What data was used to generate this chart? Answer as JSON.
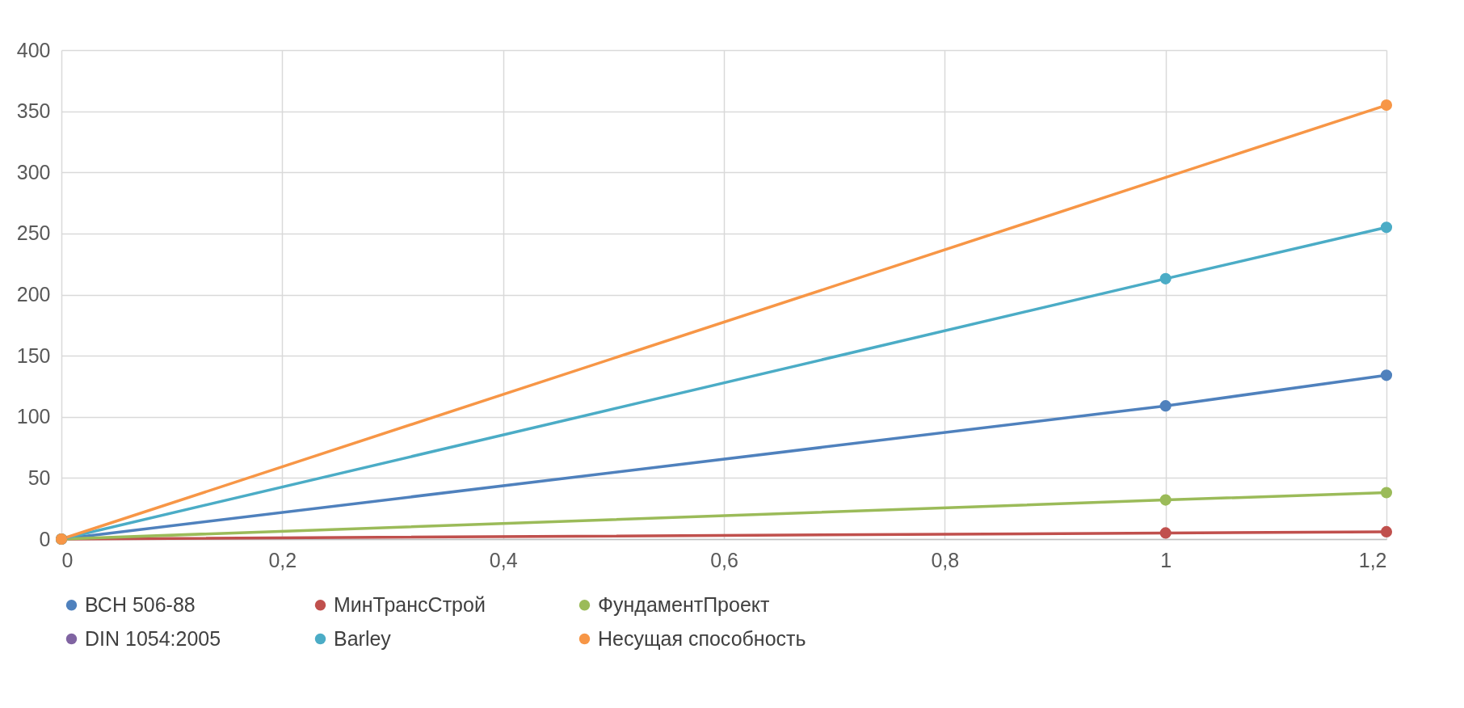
{
  "chart_data": {
    "type": "line",
    "x": [
      0,
      1,
      1.2
    ],
    "series": [
      {
        "name": "ВСН 506-88",
        "color": "#4f81bd",
        "values": [
          0,
          109,
          134
        ]
      },
      {
        "name": "МинТрансСтрой",
        "color": "#c0504d",
        "values": [
          0,
          5,
          6
        ]
      },
      {
        "name": "ФундаментПроект",
        "color": "#9bbb59",
        "values": [
          0,
          32,
          38
        ]
      },
      {
        "name": "DIN 1054:2005",
        "color": "#8064a2",
        "values": [
          null,
          null,
          null
        ]
      },
      {
        "name": "Barley",
        "color": "#4bacc6",
        "values": [
          0,
          213,
          255
        ]
      },
      {
        "name": "Несущая способность",
        "color": "#f79646",
        "values": [
          0,
          null,
          355
        ]
      }
    ],
    "xlim": [
      0,
      1.2
    ],
    "xticks": [
      0,
      {
        "value": 0.2,
        "label": "0,2"
      },
      {
        "value": 0.4,
        "label": "0,4"
      },
      {
        "value": 0.6,
        "label": "0,6"
      },
      {
        "value": 0.8,
        "label": "0,8"
      },
      1,
      {
        "value": 1.2,
        "label": "1,2"
      }
    ],
    "ylim": [
      0,
      400
    ],
    "yticks": [
      0,
      50,
      100,
      150,
      200,
      250,
      300,
      350,
      400
    ],
    "grid": true,
    "legend": "bottom",
    "marker": "circle",
    "line_style": "solid"
  }
}
